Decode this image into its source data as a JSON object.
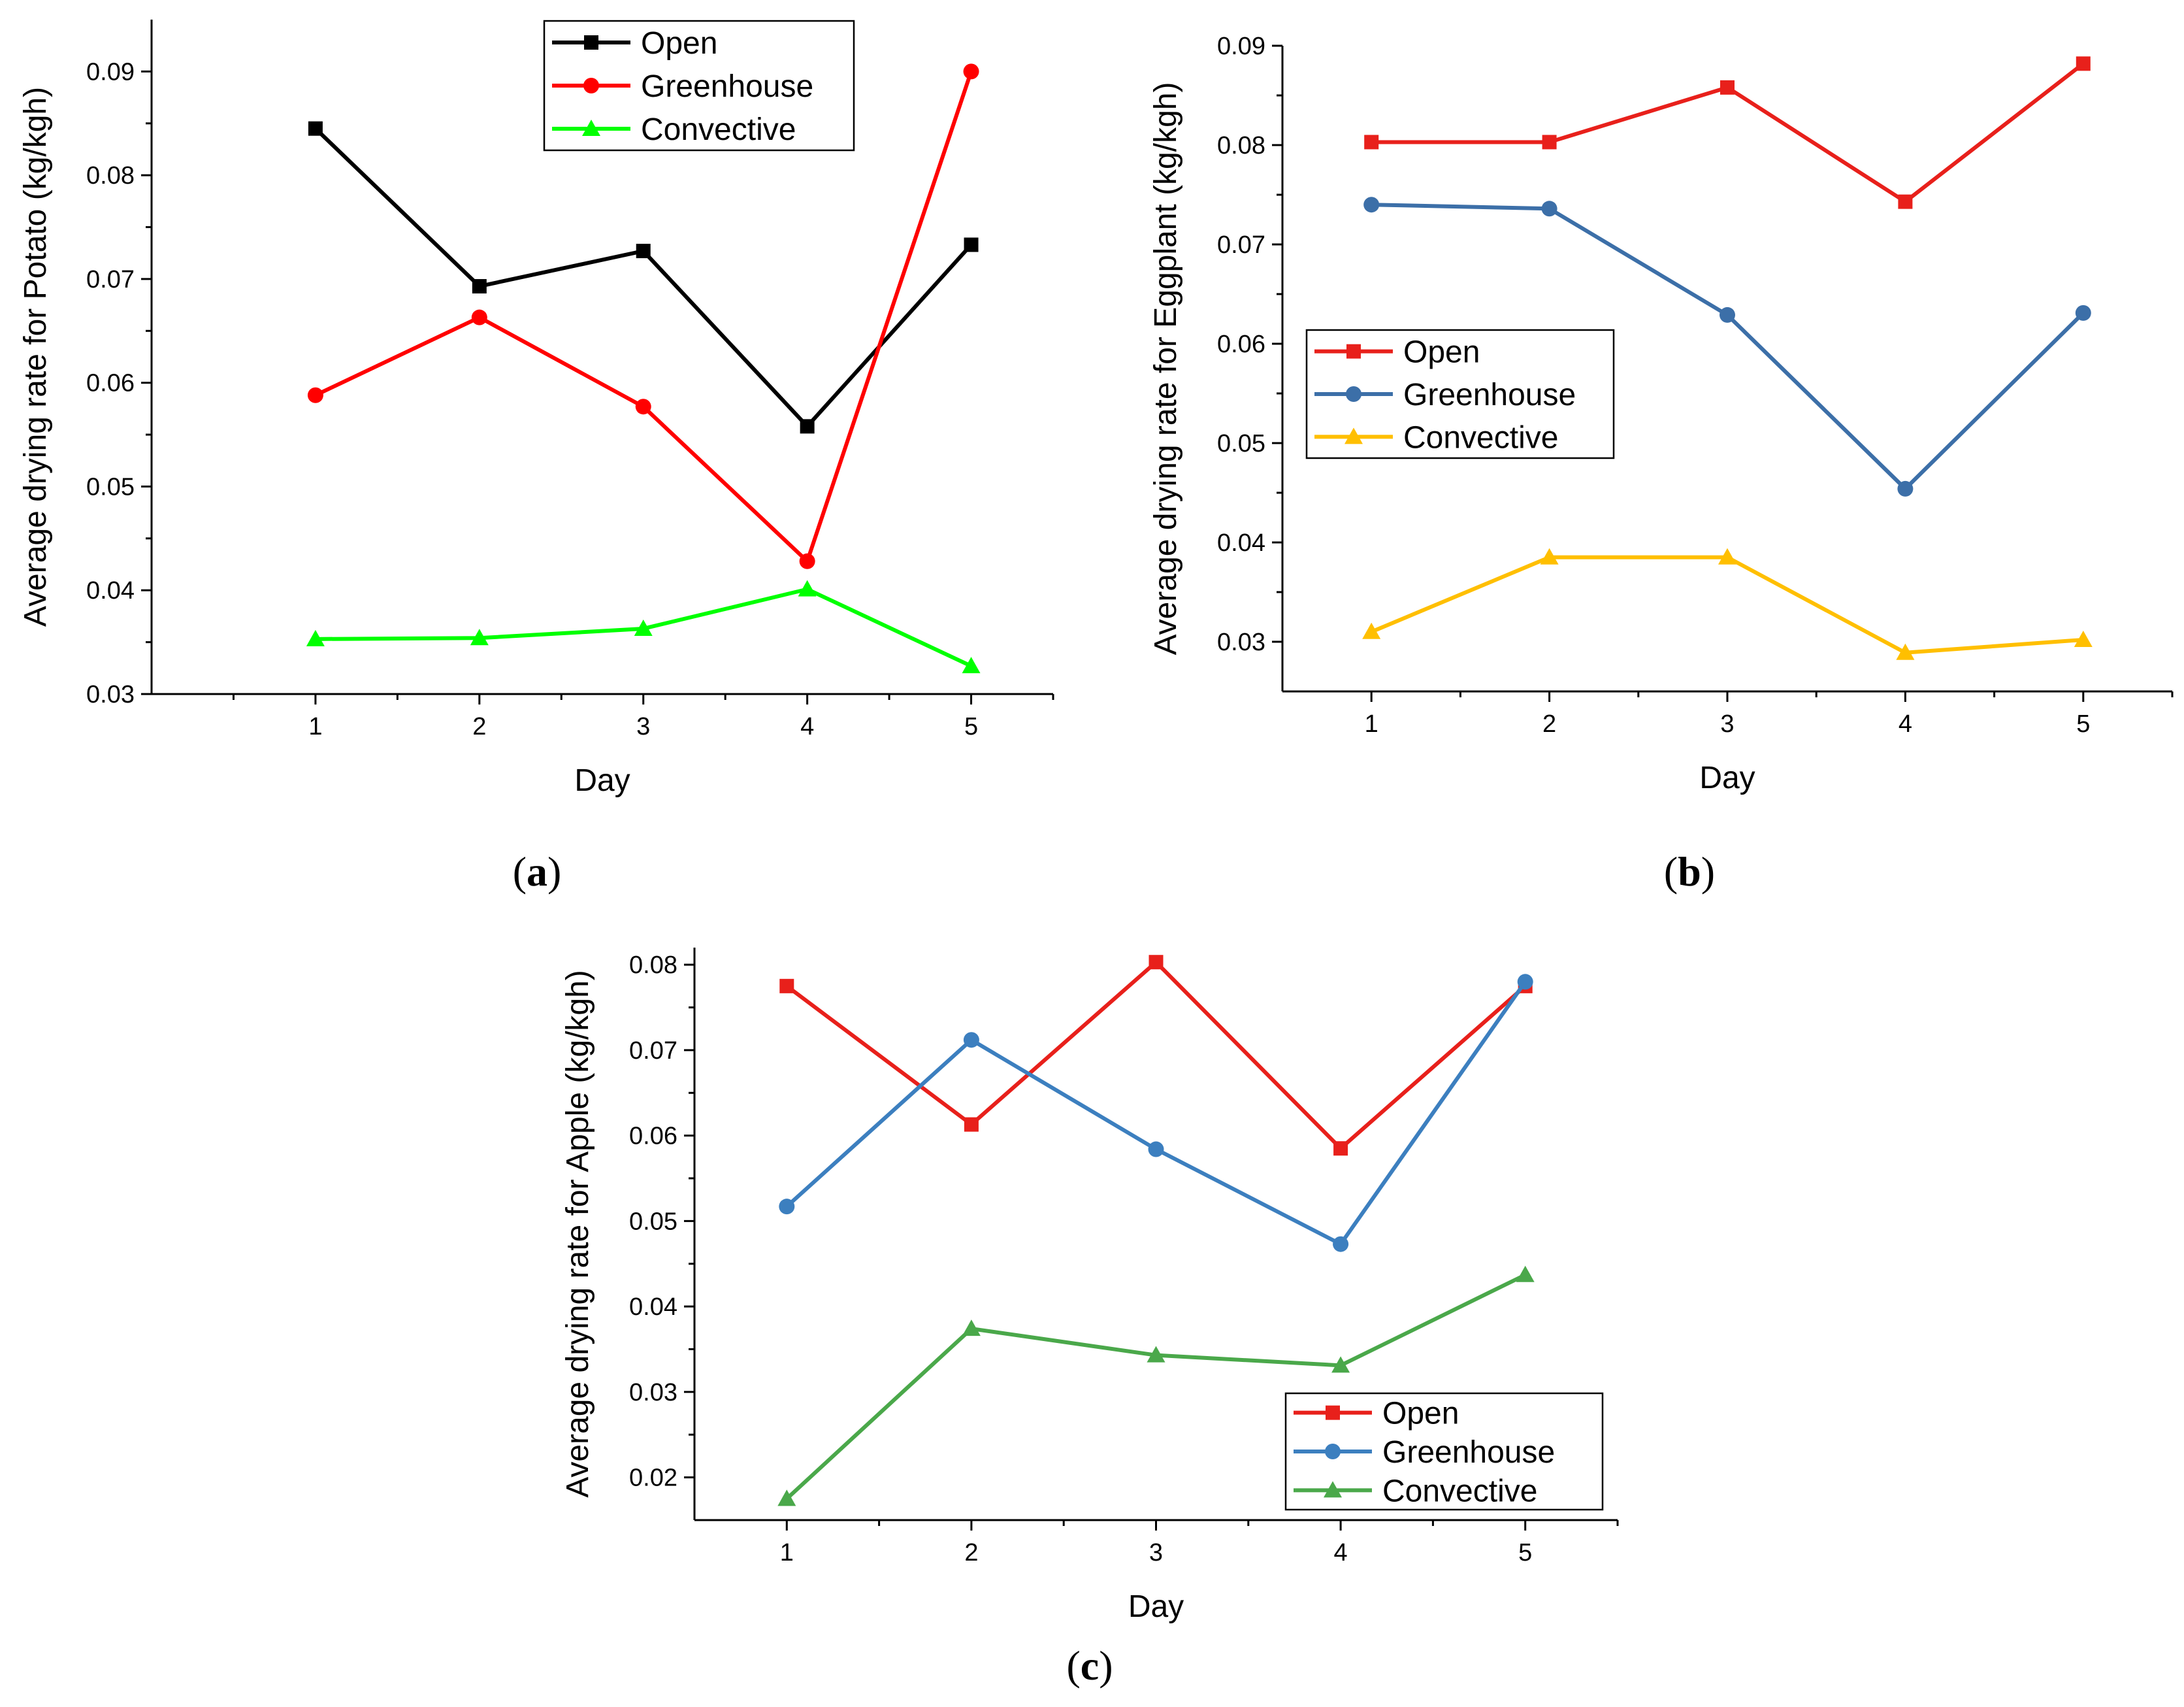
{
  "chart_data": [
    {
      "type": "line",
      "panel_label": "a",
      "xlabel": "Day",
      "ylabel": "Average drying rate for Potato (kg/kgh)",
      "x": [
        1,
        2,
        3,
        4,
        5
      ],
      "xlim": [
        0,
        5.5
      ],
      "ylim": [
        0.03,
        0.095
      ],
      "yticks": [
        0.03,
        0.04,
        0.05,
        0.06,
        0.07,
        0.08,
        0.09
      ],
      "ytick_labels": [
        "0.03",
        "0.04",
        "0.05",
        "0.06",
        "0.07",
        "0.08",
        "0.09"
      ],
      "legend_position": "top-center",
      "series": [
        {
          "name": "Open",
          "color": "#000000",
          "marker": "square",
          "values": [
            0.0845,
            0.0693,
            0.0727,
            0.0558,
            0.0733
          ]
        },
        {
          "name": "Greenhouse",
          "color": "#ff0000",
          "marker": "circle",
          "values": [
            0.0588,
            0.0663,
            0.0577,
            0.0428,
            0.09
          ]
        },
        {
          "name": "Convective",
          "color": "#00ff00",
          "marker": "triangle",
          "values": [
            0.0353,
            0.0354,
            0.0363,
            0.0401,
            0.0327
          ]
        }
      ]
    },
    {
      "type": "line",
      "panel_label": "b",
      "xlabel": "Day",
      "ylabel": "Average drying rate for Eggplant (kg/kgh)",
      "x": [
        1,
        2,
        3,
        4,
        5
      ],
      "xlim": [
        0.5,
        5.5
      ],
      "ylim": [
        0.025,
        0.09
      ],
      "yticks": [
        0.03,
        0.04,
        0.05,
        0.06,
        0.07,
        0.08,
        0.09
      ],
      "ytick_labels": [
        "0.03",
        "0.04",
        "0.05",
        "0.06",
        "0.07",
        "0.08",
        "0.09"
      ],
      "legend_position": "middle-left",
      "series": [
        {
          "name": "Open",
          "color": "#e8201b",
          "marker": "square",
          "values": [
            0.0803,
            0.0803,
            0.0858,
            0.0743,
            0.0882
          ]
        },
        {
          "name": "Greenhouse",
          "color": "#3c6fa8",
          "marker": "circle",
          "values": [
            0.074,
            0.0736,
            0.0629,
            0.0454,
            0.0631
          ]
        },
        {
          "name": "Convective",
          "color": "#ffbf00",
          "marker": "triangle",
          "values": [
            0.031,
            0.0385,
            0.0385,
            0.0289,
            0.0302
          ]
        }
      ]
    },
    {
      "type": "line",
      "panel_label": "c",
      "xlabel": "Day",
      "ylabel": "Average drying rate for Apple (kg/kgh)",
      "x": [
        1,
        2,
        3,
        4,
        5
      ],
      "xlim": [
        0.5,
        5.5
      ],
      "ylim": [
        0.015,
        0.082
      ],
      "yticks": [
        0.02,
        0.03,
        0.04,
        0.05,
        0.06,
        0.07,
        0.08
      ],
      "ytick_labels": [
        "0.02",
        "0.03",
        "0.04",
        "0.05",
        "0.06",
        "0.07",
        "0.08"
      ],
      "legend_position": "bottom-right",
      "series": [
        {
          "name": "Open",
          "color": "#e8201b",
          "marker": "square",
          "values": [
            0.0775,
            0.0613,
            0.0803,
            0.0585,
            0.0775
          ]
        },
        {
          "name": "Greenhouse",
          "color": "#3c7fbf",
          "marker": "circle",
          "values": [
            0.0517,
            0.0712,
            0.0584,
            0.0473,
            0.078
          ]
        },
        {
          "name": "Convective",
          "color": "#4aa84a",
          "marker": "triangle",
          "values": [
            0.0175,
            0.0374,
            0.0343,
            0.0331,
            0.0437
          ]
        }
      ]
    }
  ]
}
